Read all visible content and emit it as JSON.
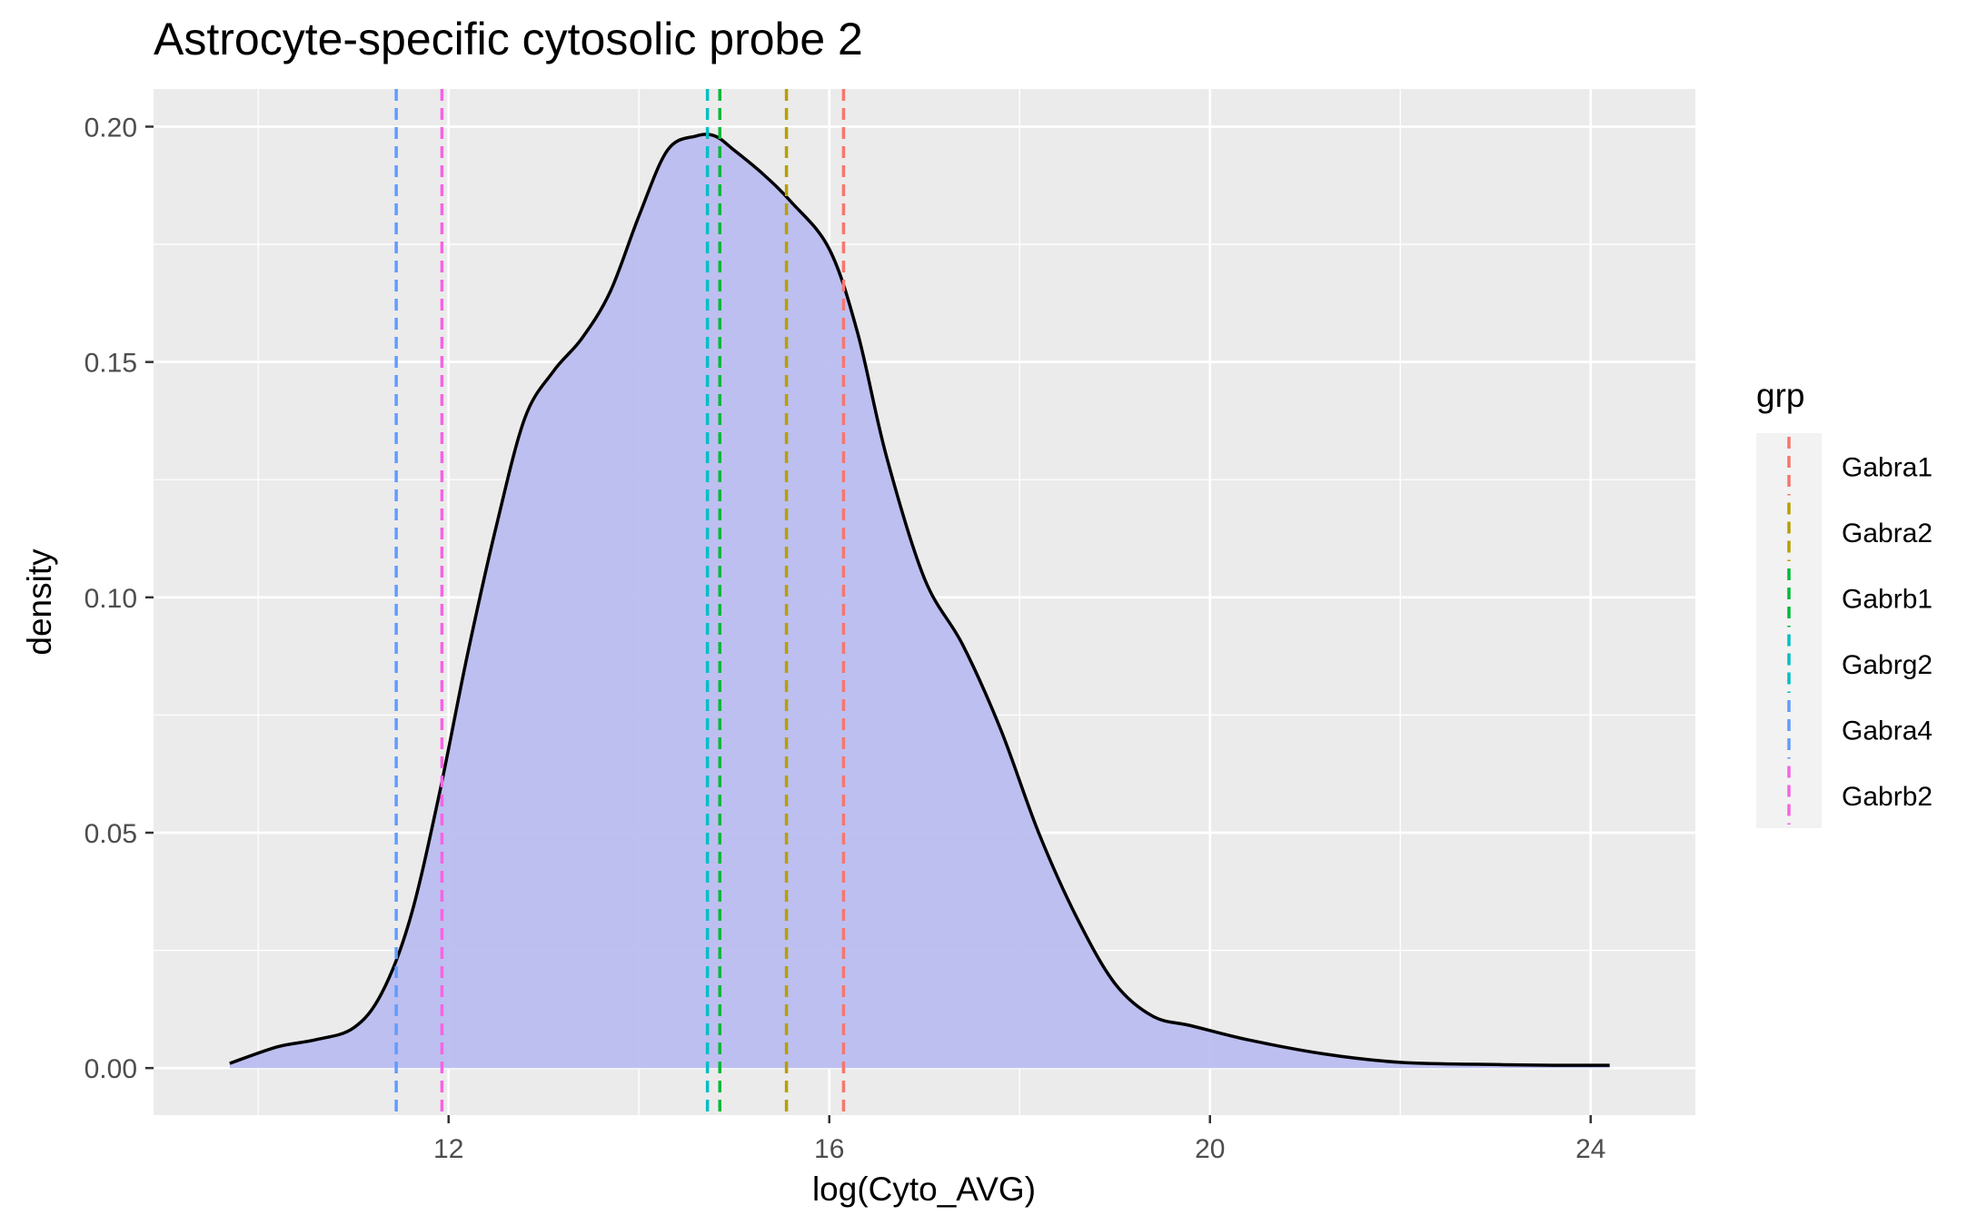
{
  "chart_data": {
    "type": "area",
    "title": "Astrocyte-specific cytosolic probe 2",
    "xlabel": "log(Cyto_AVG)",
    "ylabel": "density",
    "xlim": [
      8.9,
      25.1
    ],
    "ylim": [
      -0.01,
      0.208
    ],
    "x_ticks": [
      12,
      16,
      20,
      24
    ],
    "y_ticks": [
      0.0,
      0.05,
      0.1,
      0.15,
      0.2
    ],
    "y_tick_labels": [
      "0.00",
      "0.05",
      "0.10",
      "0.15",
      "0.20"
    ],
    "grid": true,
    "density_fill": "#bbbdf0",
    "density_line": "#000000",
    "panel_background": "#ebebeb",
    "density": {
      "x": [
        9.7,
        10.2,
        10.6,
        11.0,
        11.3,
        11.6,
        11.9,
        12.2,
        12.5,
        12.8,
        13.1,
        13.4,
        13.7,
        14.0,
        14.3,
        14.6,
        14.8,
        15.0,
        15.3,
        15.6,
        16.0,
        16.3,
        16.6,
        17.0,
        17.4,
        17.8,
        18.2,
        18.6,
        19.0,
        19.4,
        19.8,
        20.4,
        21.2,
        22.0,
        22.8,
        23.6,
        24.2
      ],
      "y": [
        0.001,
        0.0045,
        0.006,
        0.0085,
        0.016,
        0.032,
        0.058,
        0.088,
        0.115,
        0.138,
        0.148,
        0.155,
        0.165,
        0.181,
        0.195,
        0.198,
        0.198,
        0.195,
        0.19,
        0.184,
        0.174,
        0.156,
        0.13,
        0.104,
        0.09,
        0.072,
        0.05,
        0.032,
        0.018,
        0.011,
        0.009,
        0.006,
        0.003,
        0.0012,
        0.0008,
        0.0006,
        0.0006
      ]
    },
    "legend": {
      "title": "grp",
      "placement": "right"
    },
    "series": [
      {
        "name": "Gabra1",
        "type": "vline",
        "x": 16.15,
        "color": "#f8766d"
      },
      {
        "name": "Gabra2",
        "type": "vline",
        "x": 15.55,
        "color": "#b79f00"
      },
      {
        "name": "Gabrb1",
        "type": "vline",
        "x": 14.85,
        "color": "#00ba38"
      },
      {
        "name": "Gabrg2",
        "type": "vline",
        "x": 14.72,
        "color": "#00bfc4"
      },
      {
        "name": "Gabra4",
        "type": "vline",
        "x": 11.45,
        "color": "#619cff"
      },
      {
        "name": "Gabrb2",
        "type": "vline",
        "x": 11.93,
        "color": "#f564e3"
      }
    ]
  }
}
